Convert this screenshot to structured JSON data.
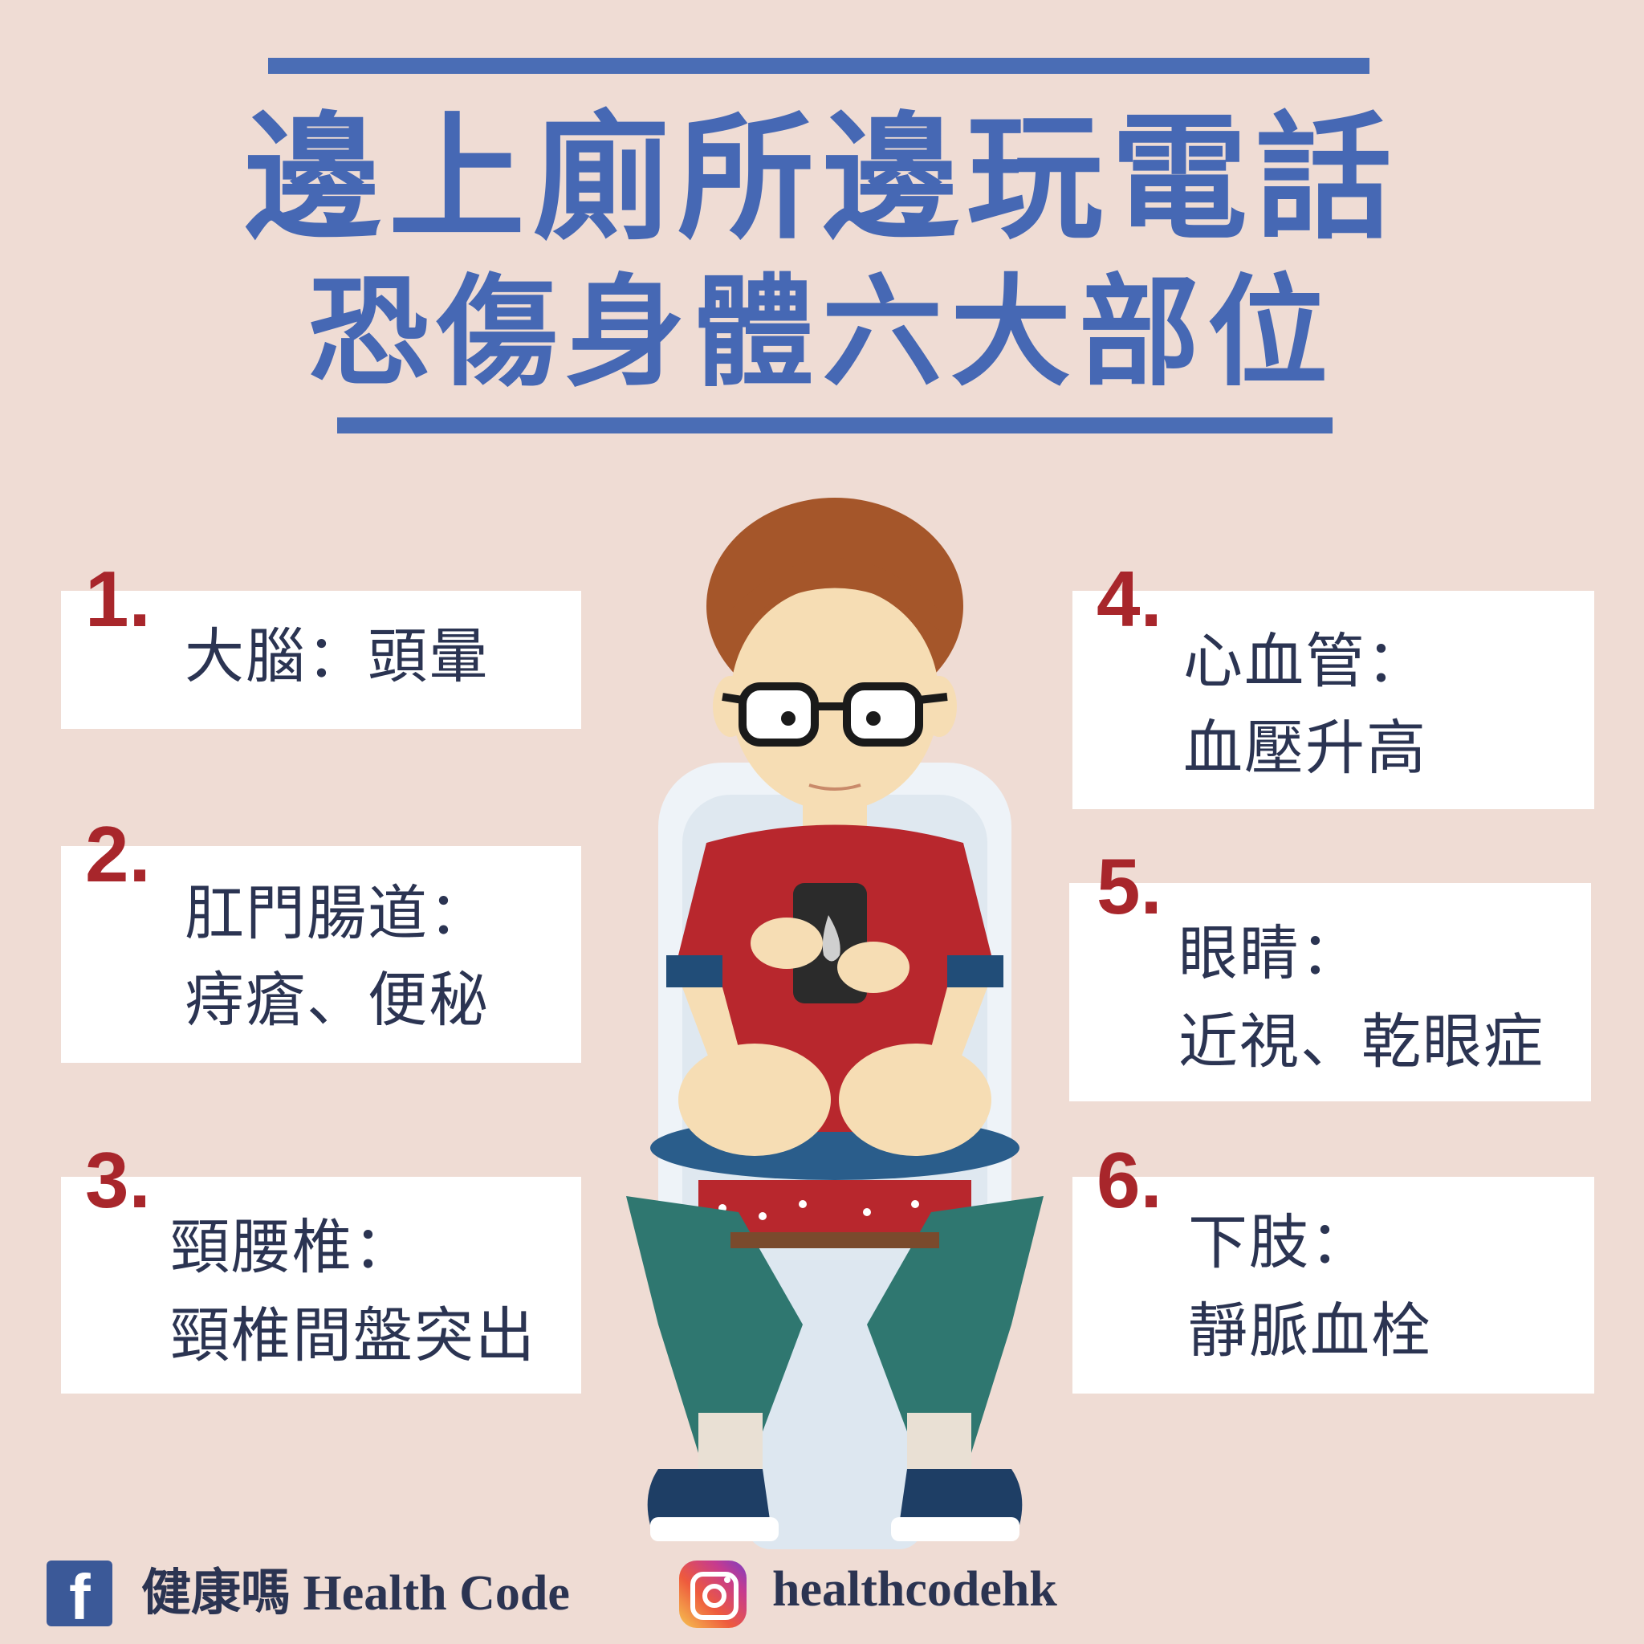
{
  "header": {
    "title_line1": "邊上廁所邊玩電話",
    "title_line2": "恐傷身體六大部位"
  },
  "items": [
    {
      "number": "1.",
      "line1": "大腦：頭暈",
      "line2": ""
    },
    {
      "number": "2.",
      "line1": "肛門腸道：",
      "line2": "痔瘡、便秘"
    },
    {
      "number": "3.",
      "line1": "頸腰椎：",
      "line2": "頸椎間盤突出"
    },
    {
      "number": "4.",
      "line1": "心血管：",
      "line2": "血壓升高"
    },
    {
      "number": "5.",
      "line1": "眼睛：",
      "line2": "近視、乾眼症"
    },
    {
      "number": "6.",
      "line1": "下肢：",
      "line2": "靜脈血栓"
    }
  ],
  "footer": {
    "facebook_name": "健康嗎 Health Code",
    "instagram_handle": "healthcodehk"
  },
  "colors": {
    "background": "#efdcd4",
    "title_blue": "#4668b4",
    "number_red": "#a8262b",
    "text_dark": "#2b3452"
  },
  "icons": [
    "facebook-icon",
    "instagram-icon"
  ]
}
